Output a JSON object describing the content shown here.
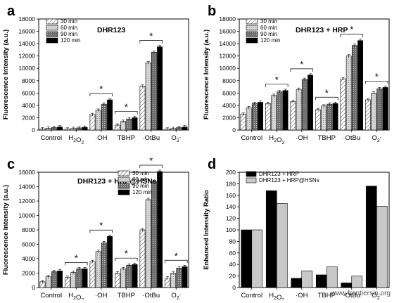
{
  "panel_labels": [
    "a",
    "b",
    "c",
    "d"
  ],
  "watermark": "www.frontiersin.org",
  "colors": {
    "s30": "#ffffff",
    "s60": "#d0d0d0",
    "s90": "#707070",
    "s120": "#000000",
    "enh1": "#000000",
    "enh2": "#c8c8c8"
  },
  "chart_data": [
    {
      "type": "bar",
      "title": "DHR123",
      "ylabel": "Fluorescence Intensity (a.u.)",
      "xlabel": "",
      "categories": [
        "Control",
        "H₂O₂",
        "·OH",
        "TBHP",
        "·OtBu",
        "O₂⁻"
      ],
      "ylim": [
        0,
        18000
      ],
      "yticks": [
        0,
        2000,
        4000,
        6000,
        8000,
        10000,
        12000,
        14000,
        16000,
        18000
      ],
      "grid": false,
      "legend": "top-left",
      "series": [
        {
          "name": "30 min",
          "values": [
            200,
            150,
            2500,
            800,
            7100,
            150
          ]
        },
        {
          "name": "60 min",
          "values": [
            300,
            250,
            3200,
            1400,
            10900,
            250
          ]
        },
        {
          "name": "90 min",
          "values": [
            400,
            350,
            4200,
            1800,
            12600,
            400
          ]
        },
        {
          "name": "120 min",
          "values": [
            500,
            450,
            4900,
            2000,
            13500,
            500
          ]
        }
      ],
      "significance": [
        {
          "category": 2,
          "label": "*"
        },
        {
          "category": 3,
          "label": "*"
        },
        {
          "category": 4,
          "label": "*"
        }
      ]
    },
    {
      "type": "bar",
      "title": "DHR123 + HRP",
      "ylabel": "Fluorescence Intensity (a.u.)",
      "xlabel": "",
      "categories": [
        "Control",
        "H₂O₂",
        "·OH",
        "TBHP",
        "·OtBu",
        "O₂⁻"
      ],
      "ylim": [
        0,
        18000
      ],
      "yticks": [
        0,
        2000,
        4000,
        6000,
        8000,
        10000,
        12000,
        14000,
        16000,
        18000
      ],
      "grid": false,
      "legend": "top-left",
      "series": [
        {
          "name": "30 min",
          "values": [
            2600,
            4300,
            4600,
            3300,
            8300,
            4900
          ]
        },
        {
          "name": "60 min",
          "values": [
            3600,
            5600,
            6600,
            3900,
            12000,
            6000
          ]
        },
        {
          "name": "90 min",
          "values": [
            4300,
            6200,
            8200,
            4200,
            13700,
            6700
          ]
        },
        {
          "name": "120 min",
          "values": [
            4500,
            6400,
            8900,
            4300,
            14500,
            6900
          ]
        }
      ],
      "significance": [
        {
          "category": 1,
          "label": "*"
        },
        {
          "category": 2,
          "label": "*"
        },
        {
          "category": 3,
          "label": "*"
        },
        {
          "category": 4,
          "label": "*"
        },
        {
          "category": 5,
          "label": "*"
        }
      ]
    },
    {
      "type": "bar",
      "title": "DHR123 + HRP@HSNs",
      "ylabel": "Fluorescence Intensity (a.u.)",
      "xlabel": "",
      "categories": [
        "Control",
        "H₂O₂",
        "·OH",
        "TBHP",
        "·OtBu",
        "O₂⁻"
      ],
      "ylim": [
        0,
        16000
      ],
      "yticks": [
        0,
        2000,
        4000,
        6000,
        8000,
        10000,
        12000,
        14000,
        16000
      ],
      "grid": false,
      "legend": "top-left",
      "series": [
        {
          "name": "30 min",
          "values": [
            800,
            1400,
            3600,
            2000,
            8000,
            1300
          ]
        },
        {
          "name": "60 min",
          "values": [
            1500,
            2100,
            5000,
            2600,
            12200,
            2000
          ]
        },
        {
          "name": "90 min",
          "values": [
            2200,
            2600,
            6200,
            3100,
            14700,
            2700
          ]
        },
        {
          "name": "120 min",
          "values": [
            2300,
            2600,
            7100,
            3200,
            16100,
            2900
          ]
        }
      ],
      "significance": [
        {
          "category": 1,
          "label": "*"
        },
        {
          "category": 2,
          "label": "*"
        },
        {
          "category": 3,
          "label": "*"
        },
        {
          "category": 4,
          "label": "*"
        },
        {
          "category": 5,
          "label": "*"
        }
      ]
    },
    {
      "type": "bar",
      "title": "",
      "ylabel": "Enhanced Intensity Ratio",
      "xlabel": "",
      "categories": [
        "Control",
        "H₂O₂",
        "·OH",
        "TBHP",
        "·OtBu",
        "O₂⁻"
      ],
      "ylim": [
        0,
        200
      ],
      "yticks": [
        0,
        20,
        40,
        60,
        80,
        100,
        120,
        140,
        160,
        180,
        200
      ],
      "grid": false,
      "legend": "top-left",
      "series": [
        {
          "name": "DHR123 + HRP",
          "values": [
            100,
            168,
            16,
            22,
            8,
            176
          ]
        },
        {
          "name": "DHR123 + HRP@HSNs",
          "values": [
            100,
            146,
            29,
            36,
            20,
            141
          ]
        }
      ]
    }
  ]
}
